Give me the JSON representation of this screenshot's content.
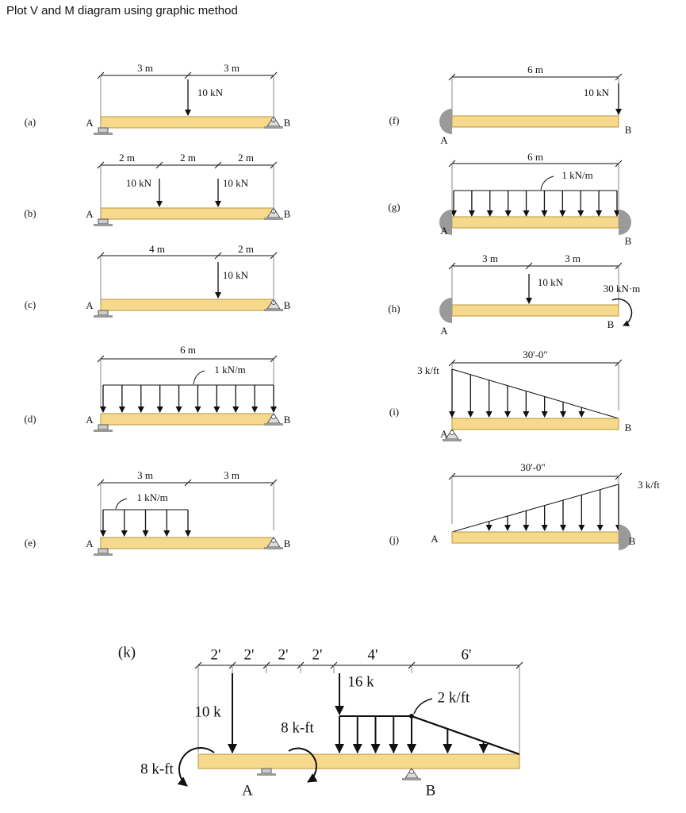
{
  "title": "Plot V and M diagram using graphic method",
  "problems": [
    {
      "label": "(a)",
      "dims": [
        "3 m",
        "3 m"
      ],
      "loads": [
        "10 kN"
      ],
      "supports": [
        "A",
        "B"
      ]
    },
    {
      "label": "(b)",
      "dims": [
        "2 m",
        "2 m",
        "2 m"
      ],
      "loads": [
        "10 kN",
        "10 kN"
      ],
      "supports": [
        "A",
        "B"
      ]
    },
    {
      "label": "(c)",
      "dims": [
        "4 m",
        "2 m"
      ],
      "loads": [
        "10 kN"
      ],
      "supports": [
        "A",
        "B"
      ]
    },
    {
      "label": "(d)",
      "dims": [
        "6 m"
      ],
      "loads": [
        "1 kN/m"
      ],
      "supports": [
        "A",
        "B"
      ]
    },
    {
      "label": "(e)",
      "dims": [
        "3 m",
        "3 m"
      ],
      "loads": [
        "1 kN/m"
      ],
      "supports": [
        "A",
        "B"
      ]
    },
    {
      "label": "(f)",
      "dims": [
        "6 m"
      ],
      "loads": [
        "10 kN"
      ],
      "supports": [
        "A",
        "B"
      ]
    },
    {
      "label": "(g)",
      "dims": [
        "6 m"
      ],
      "loads": [
        "1 kN/m"
      ],
      "supports": [
        "A",
        "B"
      ]
    },
    {
      "label": "(h)",
      "dims": [
        "3 m",
        "3 m"
      ],
      "loads": [
        "10 kN",
        "30 kN·m"
      ],
      "supports": [
        "A",
        "B"
      ]
    },
    {
      "label": "(i)",
      "dims": [
        "30'-0\""
      ],
      "loads": [
        "3 k/ft"
      ],
      "supports": [
        "A",
        "B"
      ]
    },
    {
      "label": "(j)",
      "dims": [
        "30'-0\""
      ],
      "loads": [
        "3 k/ft"
      ],
      "supports": [
        "A",
        "B"
      ]
    },
    {
      "label": "(k)",
      "dims": [
        "2'",
        "2'",
        "2'",
        "2'",
        "4'",
        "6'"
      ],
      "loads": [
        "16 k",
        "2 k/ft",
        "10 k",
        "8 k-ft",
        "8 k-ft"
      ],
      "supports": [
        "A",
        "B"
      ]
    }
  ]
}
